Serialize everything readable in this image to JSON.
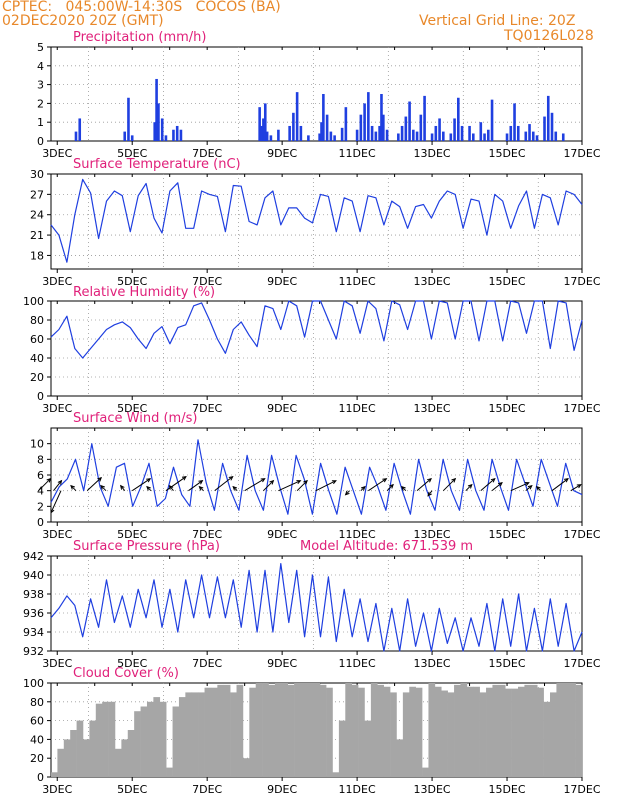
{
  "header": {
    "line1": "CPTEC:   045:00W-14:30S   COCOS (BA)",
    "line2": "02DEC2020 20Z (GMT)",
    "grid_note": "Vertical Grid Line: 20Z",
    "run_id": "TQ0126L028"
  },
  "colors": {
    "header": "#e8882a",
    "panel_title": "#e0207a",
    "series": "#1f3fe0",
    "cloud": "#a6a6a6",
    "wind_arrow": "#000000",
    "grid": "#9a9a9a"
  },
  "x_axis": {
    "start": "2020-12-02T20:00Z",
    "end": "2020-12-17T00:00Z",
    "tick_labels": [
      "3DEC",
      "5DEC",
      "7DEC",
      "9DEC",
      "11DEC",
      "13DEC",
      "15DEC",
      "17DEC"
    ]
  },
  "chart_data": [
    {
      "type": "bar",
      "title": "Precipitation (mm/h)",
      "ylim": [
        0,
        5
      ],
      "yticks": [
        0,
        1,
        2,
        3,
        4,
        5
      ],
      "grid": true,
      "x_unit": "days since 2DEC 00Z",
      "x": [
        3.5,
        3.6,
        4.8,
        4.9,
        5.0,
        5.6,
        5.65,
        5.7,
        5.8,
        5.9,
        6.1,
        6.2,
        6.3,
        8.4,
        8.45,
        8.5,
        8.55,
        8.6,
        8.7,
        8.9,
        9.2,
        9.3,
        9.4,
        9.5,
        9.7,
        10.0,
        10.05,
        10.1,
        10.2,
        10.3,
        10.4,
        10.6,
        10.7,
        11.0,
        11.1,
        11.2,
        11.3,
        11.4,
        11.5,
        11.6,
        11.65,
        11.7,
        11.8,
        12.1,
        12.2,
        12.3,
        12.4,
        12.5,
        12.6,
        12.7,
        12.8,
        13.0,
        13.1,
        13.2,
        13.3,
        13.5,
        13.6,
        13.7,
        13.8,
        14.0,
        14.1,
        14.3,
        14.4,
        14.5,
        14.6,
        15.0,
        15.1,
        15.2,
        15.3,
        15.5,
        15.6,
        15.7,
        15.8,
        16.0,
        16.1,
        16.2,
        16.3,
        16.5
      ],
      "values": [
        0.5,
        1.2,
        0.5,
        2.3,
        0.3,
        1.0,
        3.3,
        2.0,
        1.2,
        0.3,
        0.6,
        0.8,
        0.6,
        1.8,
        0.8,
        1.2,
        2.0,
        0.5,
        0.3,
        0.6,
        0.8,
        1.5,
        2.6,
        0.8,
        0.3,
        0.4,
        1.0,
        2.5,
        1.4,
        0.5,
        0.3,
        0.7,
        1.8,
        0.6,
        1.4,
        2.0,
        2.6,
        0.8,
        0.5,
        0.8,
        2.5,
        1.4,
        0.6,
        0.4,
        0.8,
        1.3,
        2.1,
        0.6,
        0.5,
        1.4,
        2.4,
        0.4,
        0.8,
        1.2,
        0.5,
        0.4,
        1.2,
        2.3,
        0.8,
        0.8,
        0.4,
        1.0,
        0.4,
        0.6,
        2.2,
        0.4,
        0.8,
        2.0,
        0.8,
        0.5,
        0.9,
        0.5,
        0.3,
        1.3,
        2.4,
        1.5,
        0.5,
        0.4
      ]
    },
    {
      "type": "line",
      "title": "Surface Temperature (nC)",
      "ylim": [
        16,
        30
      ],
      "yticks": [
        18,
        21,
        24,
        27,
        30
      ],
      "grid": true,
      "series": [
        {
          "values": [
            22.5,
            21.0,
            17.0,
            24.0,
            29.2,
            27.2,
            20.5,
            26.0,
            27.5,
            26.8,
            21.5,
            26.8,
            28.6,
            23.5,
            21.3,
            27.5,
            28.7,
            22.0,
            22.0,
            27.5,
            27.0,
            26.7,
            21.5,
            28.3,
            28.2,
            23.0,
            22.5,
            26.5,
            27.5,
            22.5,
            25.0,
            25.0,
            23.5,
            22.8,
            27.0,
            26.7,
            21.5,
            26.5,
            26.0,
            21.5,
            26.8,
            26.5,
            22.5,
            26.0,
            25.2,
            22.0,
            25.2,
            25.5,
            23.5,
            26.0,
            27.5,
            27.0,
            22.0,
            26.3,
            26.0,
            21.0,
            27.0,
            26.0,
            22.0,
            25.3,
            27.5,
            22.0,
            27.0,
            26.5,
            22.5,
            27.5,
            27.0,
            25.5
          ]
        }
      ]
    },
    {
      "type": "line",
      "title": "Relative Humidity (%)",
      "ylim": [
        0,
        100
      ],
      "yticks": [
        0,
        20,
        40,
        60,
        80,
        100
      ],
      "grid": true,
      "series": [
        {
          "values": [
            62,
            70,
            84,
            50,
            40,
            50,
            60,
            70,
            75,
            78,
            72,
            60,
            50,
            66,
            73,
            55,
            72,
            75,
            95,
            98,
            80,
            60,
            45,
            70,
            78,
            64,
            52,
            95,
            92,
            70,
            100,
            95,
            62,
            100,
            100,
            80,
            60,
            100,
            95,
            66,
            100,
            92,
            58,
            100,
            96,
            70,
            100,
            100,
            60,
            100,
            98,
            60,
            100,
            100,
            58,
            100,
            100,
            58,
            100,
            98,
            66,
            100,
            100,
            50,
            100,
            98,
            48,
            80
          ]
        }
      ]
    },
    {
      "type": "line",
      "title": "Surface Wind (m/s)",
      "ylim": [
        0,
        12
      ],
      "yticks": [
        0,
        2,
        4,
        6,
        8,
        10
      ],
      "grid": true,
      "series": [
        {
          "values": [
            2.5,
            4.5,
            5.5,
            8.0,
            4.0,
            10.0,
            4.5,
            2.0,
            7.0,
            7.5,
            2.0,
            4.5,
            7.5,
            2.0,
            3.0,
            7.0,
            3.5,
            2.0,
            10.5,
            5.0,
            1.5,
            7.5,
            4.0,
            1.5,
            8.5,
            4.0,
            1.5,
            8.5,
            4.5,
            1.0,
            8.5,
            5.5,
            1.0,
            7.5,
            4.0,
            1.0,
            7.0,
            4.0,
            1.0,
            7.0,
            4.5,
            1.5,
            7.5,
            4.0,
            1.0,
            8.0,
            4.0,
            1.5,
            8.0,
            4.0,
            1.5,
            8.0,
            4.0,
            1.5,
            8.0,
            4.5,
            1.5,
            8.0,
            5.0,
            2.0,
            8.0,
            5.0,
            2.0,
            7.5,
            4.0,
            3.5
          ]
        }
      ],
      "arrows": [
        {
          "day": 2.5,
          "dx": 12,
          "dy": -12
        },
        {
          "day": 2.9,
          "dx": 8,
          "dy": -10
        },
        {
          "day": 3.1,
          "dx": -10,
          "dy": 22
        },
        {
          "day": 3.5,
          "dx": -5,
          "dy": -5
        },
        {
          "day": 3.8,
          "dx": 14,
          "dy": -13
        },
        {
          "day": 4.3,
          "dx": -5,
          "dy": -5
        },
        {
          "day": 4.8,
          "dx": -4,
          "dy": -5
        },
        {
          "day": 5.0,
          "dx": 18,
          "dy": -12
        },
        {
          "day": 5.5,
          "dx": -4,
          "dy": -4
        },
        {
          "day": 5.9,
          "dx": 20,
          "dy": -14
        },
        {
          "day": 6.1,
          "dx": -4,
          "dy": -5
        },
        {
          "day": 6.5,
          "dx": 14,
          "dy": -10
        },
        {
          "day": 6.9,
          "dx": -4,
          "dy": -4
        },
        {
          "day": 7.2,
          "dx": 18,
          "dy": -14
        },
        {
          "day": 7.8,
          "dx": -4,
          "dy": -4
        },
        {
          "day": 8.0,
          "dx": 20,
          "dy": -12
        },
        {
          "day": 8.5,
          "dx": 10,
          "dy": -10
        },
        {
          "day": 8.9,
          "dx": 22,
          "dy": -10
        },
        {
          "day": 9.4,
          "dx": 10,
          "dy": -10
        },
        {
          "day": 9.9,
          "dx": 20,
          "dy": -10
        },
        {
          "day": 10.8,
          "dx": -4,
          "dy": 4
        },
        {
          "day": 11.1,
          "dx": 4,
          "dy": -4
        },
        {
          "day": 11.3,
          "dx": 18,
          "dy": -12
        },
        {
          "day": 11.8,
          "dx": 6,
          "dy": -6
        },
        {
          "day": 12.3,
          "dx": -4,
          "dy": -4
        },
        {
          "day": 12.6,
          "dx": 14,
          "dy": -12
        },
        {
          "day": 13.0,
          "dx": -4,
          "dy": 5
        },
        {
          "day": 13.3,
          "dx": 12,
          "dy": -12
        },
        {
          "day": 13.9,
          "dx": 6,
          "dy": -6
        },
        {
          "day": 14.3,
          "dx": 14,
          "dy": -12
        },
        {
          "day": 14.6,
          "dx": 10,
          "dy": -8
        },
        {
          "day": 15.1,
          "dx": 18,
          "dy": -8
        },
        {
          "day": 15.5,
          "dx": 6,
          "dy": -5
        },
        {
          "day": 15.9,
          "dx": -4,
          "dy": -4
        },
        {
          "day": 16.2,
          "dx": 16,
          "dy": -12
        },
        {
          "day": 16.7,
          "dx": 10,
          "dy": -6
        }
      ]
    },
    {
      "type": "line",
      "title": "Surface Pressure (hPa)",
      "annotation": "Model Altitude: 671.539 m",
      "ylim": [
        932,
        942
      ],
      "yticks": [
        932,
        934,
        936,
        938,
        940,
        942
      ],
      "grid": true,
      "series": [
        {
          "values": [
            935.5,
            936.5,
            937.8,
            936.8,
            933.5,
            937.5,
            934.5,
            939.5,
            935.0,
            937.8,
            934.5,
            938.5,
            935.5,
            939.5,
            934.5,
            938.5,
            934.0,
            939.5,
            935.5,
            940.0,
            935.5,
            939.8,
            935.5,
            939.5,
            934.5,
            940.5,
            934.0,
            940.5,
            934.0,
            941.2,
            935.0,
            940.5,
            933.5,
            940.0,
            933.5,
            939.8,
            933.0,
            938.5,
            933.5,
            937.5,
            933.0,
            937.0,
            931.8,
            936.5,
            932.0,
            937.5,
            932.5,
            936.0,
            932.0,
            936.5,
            932.8,
            935.5,
            931.8,
            935.5,
            932.5,
            937.0,
            932.0,
            937.5,
            932.5,
            938.0,
            931.8,
            936.5,
            932.0,
            937.5,
            932.5,
            937.0,
            931.8,
            934.0
          ]
        }
      ]
    },
    {
      "type": "bar",
      "title": "Cloud Cover (%)",
      "ylim": [
        0,
        100
      ],
      "yticks": [
        0,
        20,
        40,
        60,
        80,
        100
      ],
      "grid": true,
      "series": [
        {
          "values": [
            5,
            30,
            40,
            50,
            60,
            40,
            60,
            78,
            80,
            80,
            30,
            40,
            50,
            70,
            75,
            80,
            85,
            80,
            10,
            75,
            85,
            90,
            90,
            90,
            95,
            95,
            98,
            98,
            90,
            98,
            20,
            95,
            100,
            100,
            98,
            100,
            100,
            98,
            100,
            100,
            100,
            100,
            98,
            95,
            5,
            60,
            100,
            98,
            95,
            60,
            100,
            98,
            96,
            90,
            40,
            90,
            96,
            95,
            10,
            100,
            96,
            92,
            90,
            98,
            100,
            96,
            96,
            90,
            95,
            98,
            98,
            94,
            94,
            96,
            98,
            98,
            95,
            80,
            90,
            100,
            100,
            100,
            98
          ]
        }
      ]
    }
  ]
}
